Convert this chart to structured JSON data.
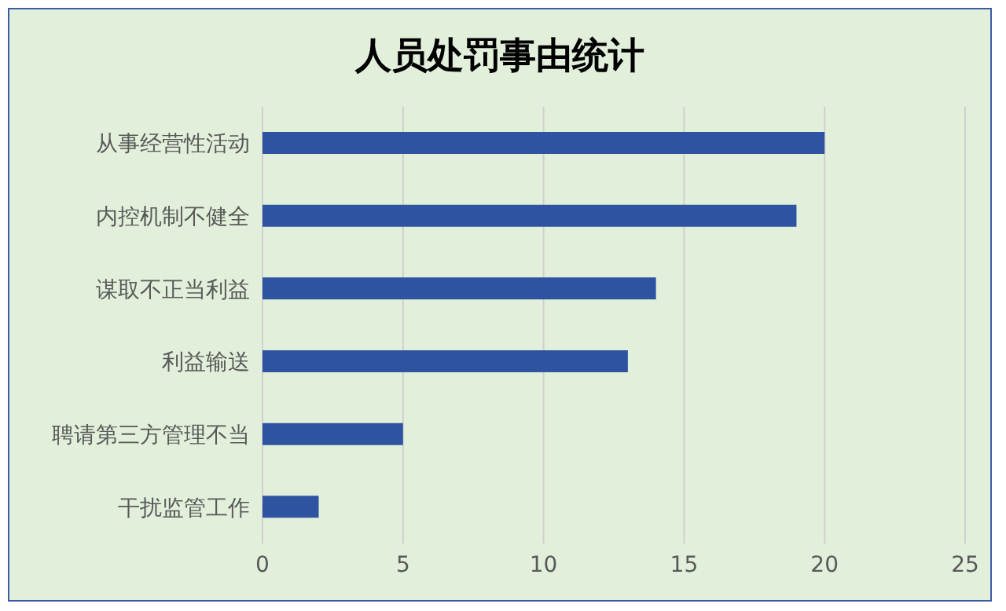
{
  "chart_data": {
    "type": "bar",
    "title": "人员处罚事由统计",
    "orientation": "horizontal",
    "categories": [
      "从事经营性活动",
      "内控机制不健全",
      "谋取不正当利益",
      "利益输送",
      "聘请第三方管理不当",
      "干扰监管工作"
    ],
    "values": [
      20,
      19,
      14,
      13,
      5,
      2
    ],
    "color": "#2e54a1",
    "xlim": [
      0,
      25
    ],
    "xticks": [
      0,
      5,
      10,
      15,
      20,
      25
    ],
    "grid": "x"
  }
}
